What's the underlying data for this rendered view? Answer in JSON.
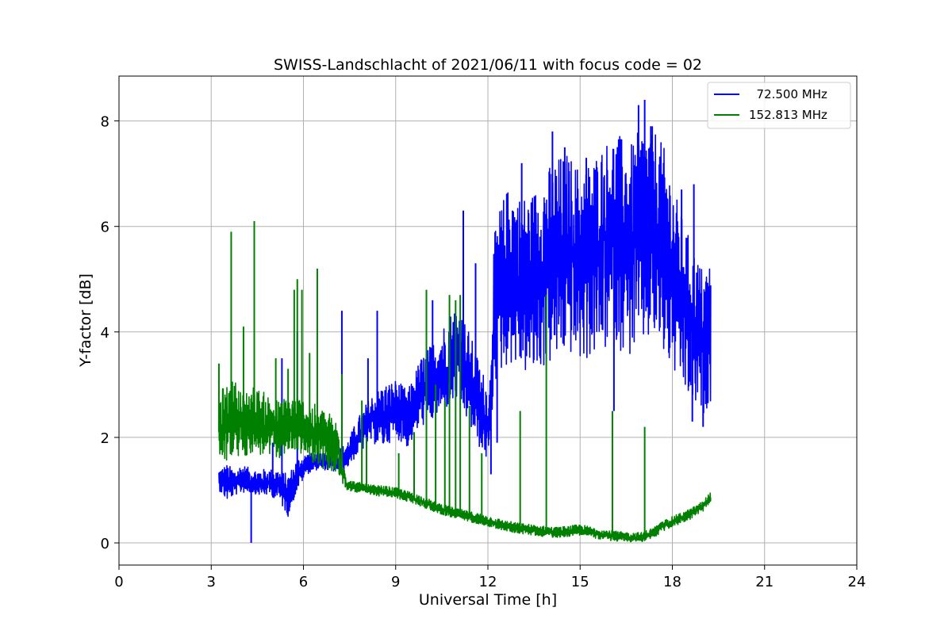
{
  "chart_data": {
    "type": "line",
    "title": "SWISS-Landschlacht of 2021/06/11 with focus code = 02",
    "xlabel": "Universal Time [h]",
    "ylabel": "Y-factor [dB]",
    "xlim": [
      0,
      24
    ],
    "ylim": [
      -0.42,
      8.85
    ],
    "xticks": [
      0,
      3,
      6,
      9,
      12,
      15,
      18,
      21,
      24
    ],
    "xtick_labels": [
      "0",
      "3",
      "6",
      "9",
      "12",
      "15",
      "18",
      "21",
      "24"
    ],
    "yticks": [
      0,
      2,
      4,
      6,
      8
    ],
    "ytick_labels": [
      "0",
      "2",
      "4",
      "6",
      "8"
    ],
    "grid": true,
    "legend_position": "top-right",
    "series": [
      {
        "name": "  72.500 MHz",
        "color": "#0000ff",
        "x": [
          3.25,
          3.5,
          3.75,
          4.0,
          4.3,
          4.6,
          4.9,
          5.2,
          5.5,
          5.8,
          6.1,
          6.5,
          7.0,
          7.4,
          7.8,
          8.2,
          8.6,
          9.0,
          9.4,
          9.8,
          10.2,
          10.6,
          11.0,
          11.4,
          11.8,
          12.05,
          12.2,
          12.4,
          12.7,
          13.0,
          13.4,
          13.8,
          14.2,
          14.6,
          15.0,
          15.4,
          15.8,
          16.2,
          16.6,
          17.0,
          17.4,
          17.8,
          18.2,
          18.6,
          19.0,
          19.25
        ],
        "y": [
          1.2,
          1.1,
          1.1,
          1.2,
          1.15,
          1.1,
          1.15,
          1.1,
          0.9,
          1.3,
          1.5,
          1.55,
          1.5,
          1.65,
          2.0,
          2.3,
          2.4,
          2.5,
          2.3,
          2.8,
          3.0,
          3.2,
          3.5,
          3.0,
          2.4,
          2.2,
          4.4,
          4.8,
          5.2,
          5.0,
          4.9,
          5.2,
          5.4,
          5.6,
          5.3,
          5.5,
          5.8,
          6.0,
          5.6,
          5.9,
          6.0,
          5.6,
          4.8,
          4.2,
          3.8,
          4.0
        ],
        "envelope_low": [
          1.0,
          0.8,
          0.9,
          0.95,
          0.95,
          0.9,
          0.9,
          0.8,
          0.5,
          1.0,
          1.3,
          1.4,
          1.35,
          1.4,
          1.7,
          1.9,
          1.8,
          2.0,
          1.8,
          2.2,
          2.3,
          2.5,
          2.7,
          2.2,
          1.7,
          1.5,
          3.0,
          3.2,
          3.4,
          3.3,
          3.1,
          3.3,
          3.4,
          3.6,
          3.4,
          3.5,
          3.6,
          3.7,
          3.5,
          3.7,
          3.8,
          3.4,
          3.0,
          2.6,
          2.4,
          2.7
        ],
        "envelope_high": [
          1.4,
          1.5,
          1.4,
          1.5,
          1.4,
          1.4,
          1.4,
          1.4,
          1.3,
          1.6,
          1.7,
          1.7,
          1.7,
          1.9,
          2.4,
          2.8,
          3.0,
          3.1,
          2.9,
          3.5,
          3.8,
          4.2,
          4.6,
          4.0,
          3.3,
          3.0,
          5.8,
          6.4,
          6.8,
          6.6,
          6.6,
          7.0,
          7.3,
          7.4,
          7.1,
          7.3,
          7.6,
          7.8,
          7.5,
          7.9,
          7.9,
          7.4,
          6.4,
          5.7,
          5.2,
          5.4
        ],
        "spikes": [
          [
            4.3,
            0.0
          ],
          [
            4.4,
            1.0
          ],
          [
            5.0,
            1.9
          ],
          [
            5.3,
            3.5
          ],
          [
            5.8,
            4.0
          ],
          [
            7.25,
            4.4
          ],
          [
            8.1,
            3.5
          ],
          [
            8.4,
            4.4
          ],
          [
            9.0,
            3.0
          ],
          [
            10.2,
            4.6
          ],
          [
            11.2,
            6.3
          ],
          [
            11.6,
            5.3
          ],
          [
            12.3,
            1.9
          ],
          [
            12.1,
            1.3
          ],
          [
            12.8,
            6.3
          ],
          [
            13.1,
            7.2
          ],
          [
            14.1,
            7.8
          ],
          [
            14.5,
            7.5
          ],
          [
            15.2,
            7.3
          ],
          [
            16.1,
            2.5
          ],
          [
            16.9,
            8.3
          ],
          [
            17.1,
            8.4
          ],
          [
            17.3,
            7.9
          ],
          [
            18.3,
            6.7
          ],
          [
            18.7,
            6.8
          ],
          [
            18.65,
            2.3
          ],
          [
            19.0,
            2.2
          ]
        ]
      },
      {
        "name": "152.813 MHz",
        "color": "#008000",
        "x": [
          3.25,
          3.5,
          3.75,
          4.0,
          4.3,
          4.6,
          4.9,
          5.2,
          5.5,
          5.8,
          6.1,
          6.5,
          6.8,
          7.1,
          7.4,
          7.8,
          8.2,
          8.6,
          9.0,
          9.4,
          9.8,
          10.2,
          10.6,
          11.0,
          11.4,
          11.8,
          12.2,
          12.6,
          13.0,
          13.4,
          13.8,
          14.2,
          14.6,
          15.0,
          15.4,
          15.8,
          16.2,
          16.6,
          17.0,
          17.4,
          17.8,
          18.2,
          18.6,
          19.0,
          19.25
        ],
        "y": [
          2.1,
          2.2,
          2.3,
          2.2,
          2.3,
          2.2,
          2.2,
          2.1,
          2.2,
          2.2,
          2.1,
          2.0,
          1.9,
          1.8,
          1.1,
          1.05,
          1.0,
          0.98,
          0.95,
          0.88,
          0.8,
          0.7,
          0.62,
          0.55,
          0.5,
          0.45,
          0.38,
          0.32,
          0.28,
          0.25,
          0.22,
          0.2,
          0.22,
          0.25,
          0.2,
          0.15,
          0.12,
          0.1,
          0.1,
          0.2,
          0.35,
          0.45,
          0.55,
          0.7,
          0.85
        ],
        "envelope_low": [
          1.6,
          1.55,
          1.6,
          1.6,
          1.7,
          1.65,
          1.6,
          1.6,
          1.7,
          1.75,
          1.6,
          1.45,
          1.35,
          1.25,
          1.0,
          0.95,
          0.9,
          0.88,
          0.85,
          0.78,
          0.7,
          0.6,
          0.52,
          0.45,
          0.4,
          0.35,
          0.28,
          0.22,
          0.18,
          0.15,
          0.12,
          0.1,
          0.12,
          0.15,
          0.1,
          0.05,
          0.03,
          0.02,
          0.02,
          0.1,
          0.25,
          0.35,
          0.45,
          0.6,
          0.72
        ],
        "envelope_high": [
          2.9,
          3.0,
          3.1,
          2.9,
          3.0,
          2.9,
          2.8,
          2.7,
          2.8,
          2.8,
          2.7,
          2.6,
          2.5,
          2.3,
          1.2,
          1.15,
          1.1,
          1.08,
          1.05,
          0.98,
          0.9,
          0.8,
          0.72,
          0.65,
          0.6,
          0.55,
          0.48,
          0.42,
          0.38,
          0.35,
          0.32,
          0.3,
          0.32,
          0.35,
          0.3,
          0.25,
          0.22,
          0.2,
          0.2,
          0.3,
          0.45,
          0.55,
          0.65,
          0.8,
          0.98
        ],
        "spikes": [
          [
            3.25,
            3.4
          ],
          [
            3.65,
            5.9
          ],
          [
            4.05,
            4.1
          ],
          [
            4.4,
            6.1
          ],
          [
            5.1,
            3.5
          ],
          [
            5.5,
            3.3
          ],
          [
            5.7,
            4.8
          ],
          [
            5.8,
            5.0
          ],
          [
            5.95,
            4.8
          ],
          [
            6.2,
            3.6
          ],
          [
            6.45,
            5.2
          ],
          [
            7.25,
            3.2
          ],
          [
            7.9,
            2.7
          ],
          [
            8.05,
            2.0
          ],
          [
            9.1,
            1.7
          ],
          [
            9.6,
            2.1
          ],
          [
            10.0,
            4.8
          ],
          [
            10.3,
            3.0
          ],
          [
            10.6,
            2.7
          ],
          [
            10.75,
            4.7
          ],
          [
            10.95,
            4.6
          ],
          [
            11.1,
            4.7
          ],
          [
            11.4,
            2.6
          ],
          [
            11.8,
            1.7
          ],
          [
            13.05,
            2.5
          ],
          [
            13.9,
            4.7
          ],
          [
            16.05,
            2.5
          ],
          [
            17.1,
            2.2
          ]
        ]
      }
    ]
  }
}
